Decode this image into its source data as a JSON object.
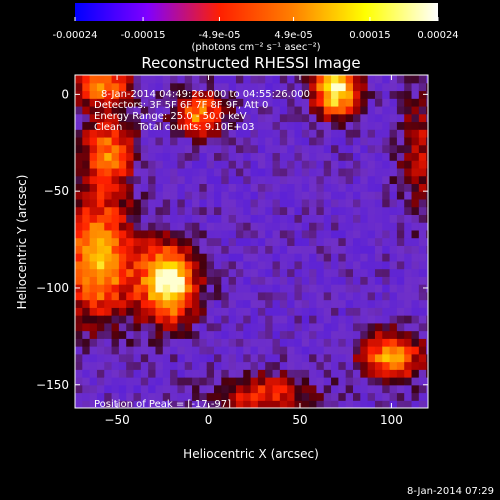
{
  "chart_data": {
    "type": "heatmap",
    "title": "Reconstructed RHESSI Image",
    "xlabel": "Heliocentric X (arcsec)",
    "ylabel": "Heliocentric Y (arcsec)",
    "xlim": [
      -73,
      120
    ],
    "ylim": [
      -162,
      10
    ],
    "x_ticks": [
      -50,
      0,
      50,
      100
    ],
    "y_ticks": [
      0,
      -50,
      -100,
      -150
    ],
    "colorbar": {
      "unit_label": "(photons cm⁻² s⁻¹ asec⁻²)",
      "range": [
        -0.00024,
        0.00024
      ],
      "tick_labels": [
        "-0.00024",
        "-0.00015",
        "-4.9e-05",
        "4.9e-05",
        "0.00015",
        "0.00024"
      ],
      "tick_values": [
        -0.00024,
        -0.00015,
        -4.9e-05,
        4.9e-05,
        0.00015,
        0.00024
      ],
      "colors": [
        "#0000ff",
        "#8000ff",
        "#ff2000",
        "#ff8000",
        "#ffff00",
        "#ffffff"
      ]
    },
    "annotations": [
      "8-Jan-2014 04:49:26.000 to 04:55:26.000",
      "Detectors: 3F 5F 6F 7F 8F 9F, Att 0",
      "Energy Range: 25.0 - 50.0 keV",
      "Clean     Total counts: 9.10E+03"
    ],
    "peak_label": "Position of Peak = [-17,-97]",
    "peak_position": [
      -17,
      -97
    ],
    "sources": [
      {
        "x": -22,
        "y": -97,
        "sx": 11,
        "sy": 14,
        "amp": 1.0
      },
      {
        "x": -60,
        "y": -85,
        "sx": 13,
        "sy": 22,
        "amp": 0.8
      },
      {
        "x": -55,
        "y": -30,
        "sx": 10,
        "sy": 14,
        "amp": 0.6
      },
      {
        "x": -58,
        "y": 5,
        "sx": 12,
        "sy": 8,
        "amp": 0.6
      },
      {
        "x": -5,
        "y": -10,
        "sx": 10,
        "sy": 8,
        "amp": 0.65
      },
      {
        "x": 70,
        "y": 3,
        "sx": 9,
        "sy": 10,
        "amp": 0.95
      },
      {
        "x": 100,
        "y": -135,
        "sx": 12,
        "sy": 9,
        "amp": 0.7
      },
      {
        "x": 30,
        "y": -155,
        "sx": 20,
        "sy": 8,
        "amp": 0.45
      },
      {
        "x": 115,
        "y": -30,
        "sx": 8,
        "sy": 22,
        "amp": 0.35
      }
    ]
  },
  "footer": {
    "timestamp": "8-Jan-2014 07:29"
  }
}
